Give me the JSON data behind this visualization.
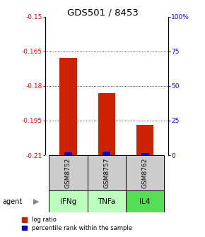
{
  "title": "GDS501 / 8453",
  "samples": [
    "GSM8752",
    "GSM8757",
    "GSM8762"
  ],
  "agents": [
    "IFNg",
    "TNFa",
    "IL4"
  ],
  "log_ratios": [
    -0.168,
    -0.183,
    -0.197
  ],
  "percentile_ranks": [
    2.0,
    2.5,
    1.5
  ],
  "ylim_left": [
    -0.21,
    -0.15
  ],
  "ylim_right": [
    0,
    100
  ],
  "yticks_left": [
    -0.21,
    -0.195,
    -0.18,
    -0.165,
    -0.15
  ],
  "yticks_right": [
    0,
    25,
    50,
    75,
    100
  ],
  "ytick_labels_left": [
    "-0.21",
    "-0.195",
    "-0.18",
    "-0.165",
    "-0.15"
  ],
  "ytick_labels_right": [
    "0",
    "25",
    "50",
    "75",
    "100%"
  ],
  "bar_bottom": -0.21,
  "bar_color_red": "#cc2200",
  "bar_color_blue": "#0000cc",
  "sample_bg_color": "#cccccc",
  "agent_colors": [
    "#bbffbb",
    "#bbffbb",
    "#55dd55"
  ],
  "legend_items": [
    "log ratio",
    "percentile rank within the sample"
  ],
  "legend_colors": [
    "#cc2200",
    "#0000cc"
  ]
}
